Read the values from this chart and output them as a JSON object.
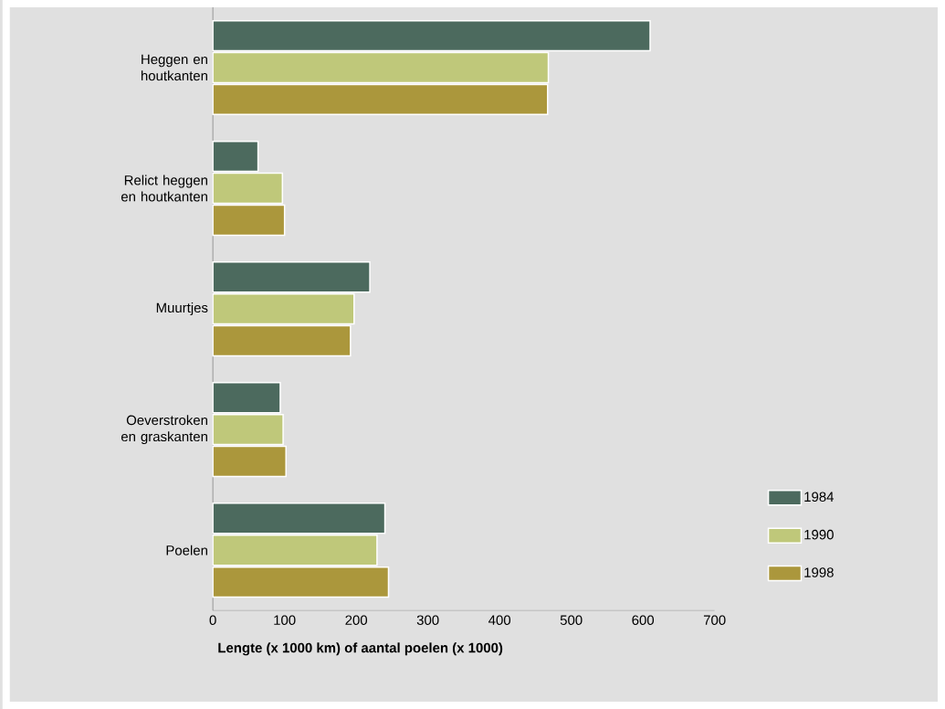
{
  "chart_data": {
    "type": "bar",
    "orientation": "horizontal",
    "xlabel": "Lengte (x 1000 km) of aantal poelen (x 1000)",
    "categories": [
      "Heggen en houtkanten",
      "Relict heggen en houtkanten",
      "Muurtjes",
      "Oeverstroken en graskanten",
      "Poelen"
    ],
    "series": [
      {
        "name": "1984",
        "color": "#4c6a5e",
        "values": [
          610,
          63,
          219,
          94,
          240
        ]
      },
      {
        "name": "1990",
        "color": "#bfc87a",
        "values": [
          468,
          97,
          197,
          98,
          229
        ]
      },
      {
        "name": "1998",
        "color": "#ab973c",
        "values": [
          467,
          100,
          192,
          102,
          245
        ]
      }
    ],
    "xlim": [
      0,
      700
    ],
    "xticks": [
      0,
      100,
      200,
      300,
      400,
      500,
      600,
      700
    ],
    "grid": false,
    "legend": "bottom right"
  }
}
